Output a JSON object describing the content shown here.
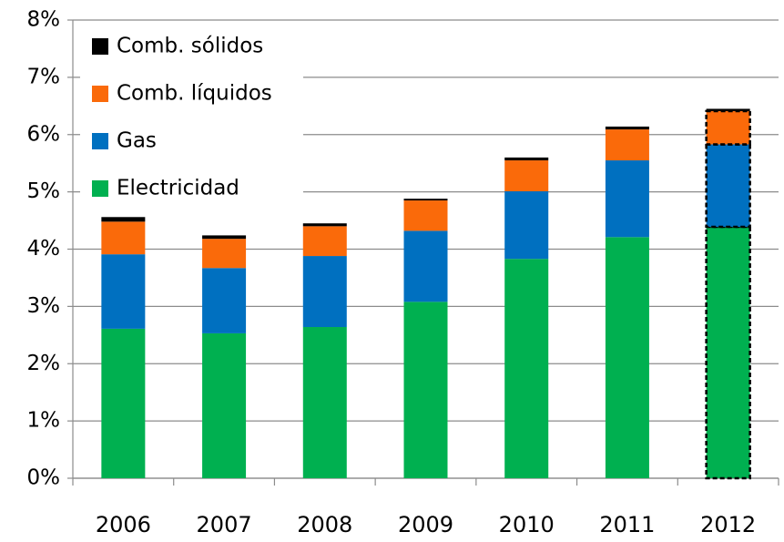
{
  "chart_data": {
    "type": "stacked_bar",
    "categories": [
      "2006",
      "2007",
      "2008",
      "2009",
      "2010",
      "2011",
      "2012"
    ],
    "series": [
      {
        "name": "Electricidad",
        "color": "#00b050",
        "values": [
          2.61,
          2.53,
          2.64,
          3.08,
          3.83,
          4.21,
          4.39
        ]
      },
      {
        "name": "Gas",
        "color": "#0070c0",
        "values": [
          1.3,
          1.14,
          1.24,
          1.24,
          1.18,
          1.34,
          1.44
        ]
      },
      {
        "name": "Comb. líquidos",
        "color": "#fa6a0a",
        "values": [
          0.57,
          0.51,
          0.52,
          0.53,
          0.54,
          0.54,
          0.58
        ]
      },
      {
        "name": "Comb. sólidos",
        "color": "#000000",
        "values": [
          0.08,
          0.06,
          0.05,
          0.03,
          0.05,
          0.05,
          0.04
        ]
      }
    ],
    "ylim": [
      0,
      8
    ],
    "yticks": [
      {
        "value": 0,
        "label": "0%"
      },
      {
        "value": 1,
        "label": "1%"
      },
      {
        "value": 2,
        "label": "2%"
      },
      {
        "value": 3,
        "label": "3%"
      },
      {
        "value": 4,
        "label": "4%"
      },
      {
        "value": 5,
        "label": "5%"
      },
      {
        "value": 6,
        "label": "6%"
      },
      {
        "value": 7,
        "label": "7%"
      },
      {
        "value": 8,
        "label": "8%"
      }
    ],
    "grid": true,
    "legend": "upper left",
    "dashed_category": 6
  }
}
